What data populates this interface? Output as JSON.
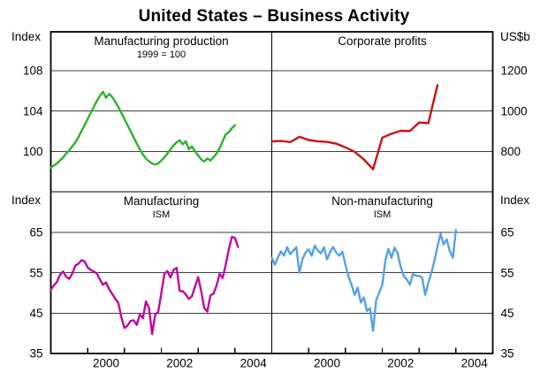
{
  "title": "United States – Business Activity",
  "units": {
    "top_left": "Index",
    "top_right": "US$b",
    "bottom_left": "Index",
    "bottom_right": "Index"
  },
  "x_tick_labels": [
    "2000",
    "2002",
    "2004"
  ],
  "chart_data": [
    {
      "id": "manufacturing-production",
      "type": "line",
      "panel": "top-left",
      "title": "Manufacturing production",
      "subtitle": "1999 = 100",
      "unit": "Index",
      "color": "#2cb22c",
      "frequency": "monthly",
      "x_start": 1999.0,
      "x_step": 0.0833333,
      "xlim": [
        1999,
        2005
      ],
      "ylim": [
        96.0,
        111.84
      ],
      "yticks": [
        100,
        104,
        108
      ],
      "ygrid": [
        100,
        104,
        108
      ],
      "labels_side": "left",
      "grid": true,
      "legend": "none",
      "values": [
        98.4,
        98.6,
        98.8,
        99.1,
        99.4,
        99.8,
        100.1,
        100.5,
        100.9,
        101.4,
        102.0,
        102.6,
        103.2,
        103.8,
        104.4,
        105.0,
        105.5,
        105.9,
        105.3,
        105.7,
        105.4,
        104.9,
        104.4,
        103.8,
        103.2,
        102.6,
        102.0,
        101.4,
        100.8,
        100.2,
        99.7,
        99.3,
        99.0,
        98.8,
        98.7,
        98.8,
        99.1,
        99.4,
        99.8,
        100.2,
        100.6,
        100.9,
        101.1,
        100.7,
        101.0,
        100.2,
        100.5,
        100.0,
        99.6,
        99.2,
        99.0,
        99.3,
        99.1,
        99.4,
        99.8,
        100.3,
        101.0,
        101.7,
        101.9,
        102.3,
        102.6
      ]
    },
    {
      "id": "corporate-profits",
      "type": "line",
      "panel": "top-right",
      "title": "Corporate profits",
      "subtitle": "",
      "unit": "US$b",
      "color": "#cc1111",
      "frequency": "quarterly",
      "x_start": 1999.0,
      "x_step": 0.25,
      "xlim": [
        1999,
        2005
      ],
      "ylim": [
        600,
        1392
      ],
      "yticks": [
        800,
        1000,
        1200
      ],
      "ygrid": [
        800,
        1000,
        1200
      ],
      "labels_side": "right",
      "grid": true,
      "legend": "none",
      "values": [
        849,
        852,
        846,
        872,
        856,
        850,
        847,
        838,
        820,
        798,
        760,
        711,
        868,
        887,
        902,
        901,
        943,
        940,
        1128
      ]
    },
    {
      "id": "manufacturing-ism",
      "type": "line",
      "panel": "bottom-left",
      "title": "Manufacturing",
      "subtitle": "ISM",
      "unit": "Index",
      "color": "#c007a0",
      "frequency": "monthly",
      "x_start": 1999.0,
      "x_step": 0.0833333,
      "xlim": [
        1999,
        2005
      ],
      "ylim": [
        35,
        75.05
      ],
      "yticks": [
        35,
        45,
        55,
        65
      ],
      "ygrid": [
        45,
        55,
        65
      ],
      "labels_side": "left",
      "grid": true,
      "legend": "none",
      "values": [
        50.8,
        51.9,
        52.7,
        54.5,
        55.3,
        54.0,
        53.5,
        54.8,
        56.8,
        57.2,
        58.1,
        57.8,
        56.3,
        55.7,
        55.3,
        54.8,
        53.3,
        52.0,
        52.6,
        50.9,
        49.8,
        48.6,
        47.5,
        43.9,
        41.3,
        41.9,
        43.1,
        43.2,
        42.1,
        44.7,
        43.7,
        47.9,
        46.3,
        39.8,
        44.6,
        45.3,
        49.9,
        54.7,
        55.4,
        53.8,
        55.7,
        56.2,
        50.5,
        50.4,
        49.6,
        48.5,
        49.2,
        51.6,
        53.9,
        50.5,
        46.2,
        45.4,
        49.4,
        49.8,
        51.8,
        54.7,
        53.7,
        57.0,
        60.8,
        63.9,
        63.6,
        61.4
      ]
    },
    {
      "id": "non-manufacturing-ism",
      "type": "line",
      "panel": "bottom-right",
      "title": "Non-manufacturing",
      "subtitle": "ISM",
      "unit": "Index",
      "color": "#55a1e6",
      "frequency": "monthly",
      "x_start": 1999.0,
      "x_step": 0.0833333,
      "xlim": [
        1999,
        2005
      ],
      "ylim": [
        35,
        75.05
      ],
      "yticks": [
        35,
        45,
        55,
        65
      ],
      "ygrid": [
        45,
        55,
        65
      ],
      "labels_side": "right",
      "grid": true,
      "legend": "none",
      "values": [
        58.7,
        57.0,
        58.8,
        60.3,
        59.2,
        61.3,
        59.6,
        60.5,
        61.3,
        55.0,
        58.3,
        60.0,
        60.8,
        59.2,
        61.7,
        60.5,
        59.8,
        61.3,
        58.3,
        60.1,
        61.4,
        60.0,
        59.2,
        60.2,
        57.0,
        54.0,
        52.0,
        49.5,
        51.3,
        47.6,
        48.9,
        45.5,
        46.2,
        40.6,
        48.2,
        50.1,
        52.0,
        57.9,
        60.9,
        58.7,
        61.2,
        59.8,
        56.5,
        54.2,
        53.3,
        52.0,
        54.6,
        54.3,
        54.2,
        53.8,
        49.5,
        52.5,
        55.0,
        58.0,
        61.5,
        64.6,
        62.0,
        63.3,
        60.3,
        58.7,
        65.6
      ]
    }
  ]
}
